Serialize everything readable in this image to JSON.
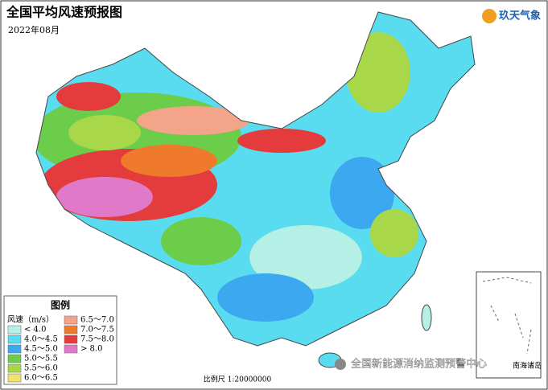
{
  "header": {
    "title": "全国平均风速预报图",
    "date": "2022年08月"
  },
  "logo": {
    "name": "玖天气象"
  },
  "legend": {
    "title": "图例",
    "unit": "风速（m/s）",
    "items": [
      {
        "label": "< 4.0",
        "color": "#b4f0e6"
      },
      {
        "label": "4.0～4.5",
        "color": "#5adcf0"
      },
      {
        "label": "4.5～5.0",
        "color": "#3ca8f0"
      },
      {
        "label": "5.0～5.5",
        "color": "#6ccd4a"
      },
      {
        "label": "5.5～6.0",
        "color": "#a8d84a"
      },
      {
        "label": "6.0～6.5",
        "color": "#f2e46a"
      },
      {
        "label": "6.5～7.0",
        "color": "#f4a488"
      },
      {
        "label": "7.0～7.5",
        "color": "#f07a2c"
      },
      {
        "label": "7.5～8.0",
        "color": "#e43c3c"
      },
      {
        "label": "> 8.0",
        "color": "#e07ac8"
      }
    ]
  },
  "scale": "比例尺 1:20000000",
  "inset": {
    "label": "南海诸岛"
  },
  "watermark": "全国新能源消纳监测预警中心"
}
